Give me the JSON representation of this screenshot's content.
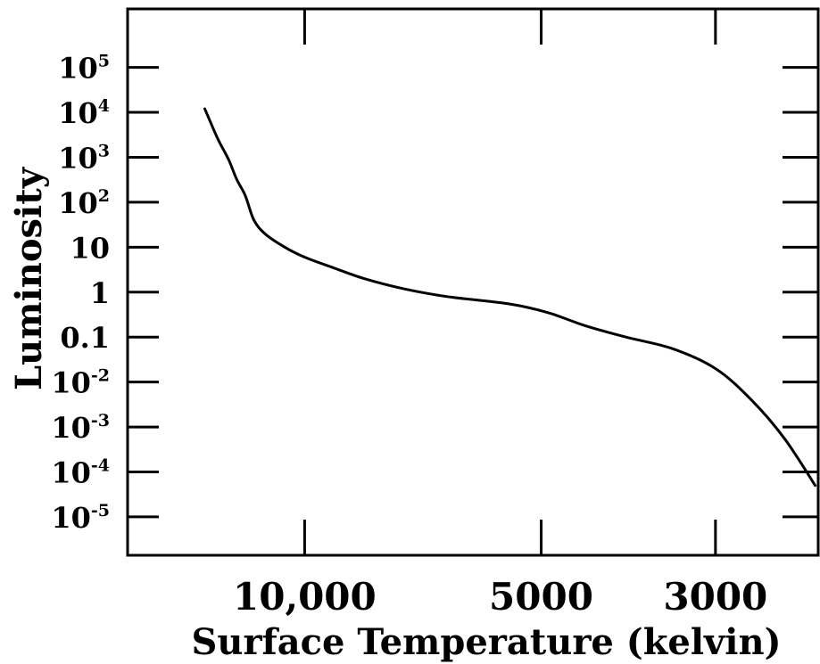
{
  "chart_data": {
    "type": "line",
    "title": "",
    "xlabel": "Surface Temperature (kelvin)",
    "ylabel": "Luminosity",
    "x_scale": "log-reversed",
    "y_scale": "log",
    "xlim": [
      16800,
      2220
    ],
    "ylim": [
      1.4e-06,
      2000000
    ],
    "x_ticks": [
      {
        "value": 10000,
        "label": "10,000"
      },
      {
        "value": 5000,
        "label": "5000"
      },
      {
        "value": 3000,
        "label": "3000"
      }
    ],
    "y_ticks": [
      {
        "value": 100000,
        "base": "10",
        "exp": "5"
      },
      {
        "value": 10000,
        "base": "10",
        "exp": "4"
      },
      {
        "value": 1000,
        "base": "10",
        "exp": "3"
      },
      {
        "value": 100,
        "base": "10",
        "exp": "2"
      },
      {
        "value": 10,
        "base": "10",
        "exp": ""
      },
      {
        "value": 1,
        "base": "1",
        "exp": ""
      },
      {
        "value": 0.1,
        "base": "0.1",
        "exp": ""
      },
      {
        "value": 0.01,
        "base": "10",
        "exp": "-2"
      },
      {
        "value": 0.001,
        "base": "10",
        "exp": "-3"
      },
      {
        "value": 0.0001,
        "base": "10",
        "exp": "-4"
      },
      {
        "value": 1e-05,
        "base": "10",
        "exp": "-5"
      }
    ],
    "grid": false,
    "series": [
      {
        "color": "#000000",
        "x": [
          13400,
          12900,
          12500,
          12200,
          11900,
          11600,
          11200,
          10600,
          10000,
          9200,
          8400,
          7500,
          6600,
          5500,
          4900,
          4400,
          3900,
          3400,
          3000,
          2700,
          2450,
          2240
        ],
        "y": [
          12000,
          2600,
          900,
          320,
          140,
          40,
          19,
          10,
          6,
          3.5,
          2,
          1.2,
          0.8,
          0.55,
          0.35,
          0.18,
          0.1,
          0.055,
          0.02,
          0.004,
          0.00055,
          5e-05
        ]
      }
    ]
  }
}
